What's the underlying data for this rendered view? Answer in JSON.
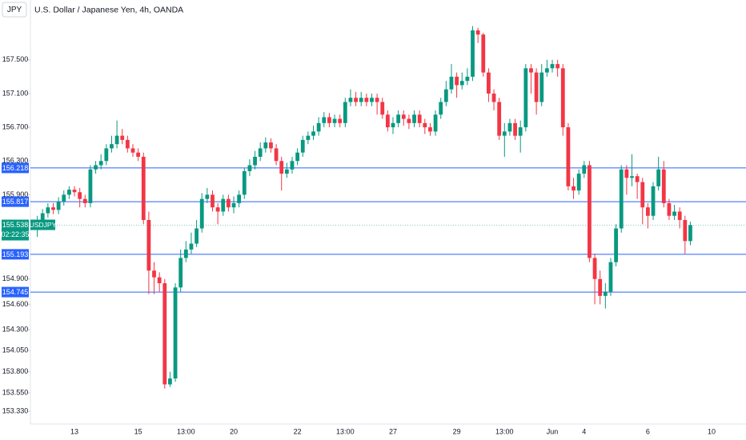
{
  "header": {
    "symbol": "JPY",
    "title": "U.S. Dollar / Japanese Yen, 4h, OANDA"
  },
  "chart_data": {
    "type": "candlestick",
    "categories": [
      null,
      null,
      null,
      null,
      null,
      null,
      null,
      "13",
      null,
      null,
      null,
      null,
      null,
      null,
      null,
      null,
      null,
      null,
      null,
      "15",
      null,
      null,
      null,
      null,
      null,
      null,
      null,
      null,
      "13:00",
      null,
      null,
      null,
      null,
      null,
      null,
      null,
      null,
      "20",
      null,
      null,
      null,
      null,
      null,
      null,
      null,
      null,
      null,
      null,
      null,
      "22",
      null,
      null,
      null,
      null,
      null,
      null,
      null,
      null,
      "13:00",
      null,
      null,
      null,
      null,
      null,
      null,
      null,
      null,
      "27",
      null,
      null,
      null,
      null,
      null,
      null,
      null,
      null,
      null,
      null,
      null,
      "29",
      null,
      null,
      null,
      null,
      null,
      null,
      null,
      null,
      "13:00",
      null,
      null,
      null,
      null,
      null,
      null,
      null,
      null,
      "Jun",
      null,
      null,
      null,
      null,
      null,
      "4",
      null,
      null,
      null,
      null,
      null,
      null,
      null,
      null,
      null,
      null,
      null,
      "6",
      null,
      null,
      null,
      null,
      null,
      null,
      null,
      null,
      null,
      null,
      null,
      "10"
    ],
    "open": [
      155.5,
      155.6,
      155.68,
      155.75,
      155.72,
      155.82,
      155.9,
      155.96,
      155.93,
      155.85,
      155.8,
      156.2,
      156.25,
      156.3,
      156.45,
      156.5,
      156.6,
      156.55,
      156.45,
      156.4,
      156.35,
      155.6,
      155.0,
      154.92,
      154.85,
      153.65,
      153.72,
      154.8,
      155.15,
      155.25,
      155.32,
      155.5,
      155.85,
      155.9,
      155.75,
      155.7,
      155.85,
      155.75,
      155.8,
      155.9,
      156.18,
      156.25,
      156.35,
      156.45,
      156.52,
      156.45,
      156.3,
      156.15,
      156.2,
      156.3,
      156.4,
      156.55,
      156.6,
      156.65,
      156.75,
      156.82,
      156.75,
      156.8,
      156.75,
      157.0,
      157.05,
      157.0,
      157.05,
      157.0,
      157.05,
      157.0,
      156.85,
      156.7,
      156.75,
      156.85,
      156.8,
      156.75,
      156.85,
      156.75,
      156.7,
      156.65,
      156.85,
      157.0,
      157.15,
      157.3,
      157.2,
      157.25,
      157.3,
      157.85,
      157.8,
      157.35,
      157.1,
      157.0,
      156.6,
      156.65,
      156.75,
      156.6,
      156.7,
      157.4,
      157.35,
      157.0,
      157.35,
      157.4,
      157.45,
      157.4,
      156.7,
      156.0,
      155.95,
      156.15,
      156.25,
      155.15,
      154.9,
      154.7,
      154.75,
      155.1,
      155.5,
      156.2,
      156.1,
      156.12,
      156.05,
      155.75,
      155.65,
      156.0,
      156.2,
      155.8,
      155.65,
      155.7,
      155.6,
      155.35,
      null,
      null,
      null,
      null
    ],
    "high": [
      155.65,
      155.73,
      155.8,
      155.8,
      155.87,
      155.95,
      156.0,
      156.0,
      155.98,
      155.9,
      156.25,
      156.3,
      156.38,
      156.5,
      156.6,
      156.78,
      156.68,
      156.6,
      156.5,
      156.45,
      156.4,
      155.7,
      155.1,
      154.98,
      154.9,
      153.8,
      154.85,
      155.25,
      155.35,
      155.45,
      155.6,
      155.92,
      155.98,
      155.95,
      155.8,
      155.9,
      155.9,
      155.88,
      155.95,
      156.22,
      156.32,
      156.42,
      156.52,
      156.58,
      156.57,
      156.5,
      156.35,
      156.28,
      156.35,
      156.45,
      156.6,
      156.65,
      156.72,
      156.82,
      156.88,
      156.87,
      156.85,
      156.85,
      157.05,
      157.15,
      157.12,
      157.12,
      157.1,
      157.1,
      157.1,
      157.05,
      156.9,
      156.82,
      156.9,
      156.9,
      156.85,
      156.9,
      156.9,
      156.8,
      156.75,
      156.9,
      157.05,
      157.25,
      157.45,
      157.35,
      157.35,
      157.4,
      157.9,
      157.88,
      157.82,
      157.4,
      157.15,
      157.05,
      156.75,
      156.8,
      156.8,
      156.78,
      157.45,
      157.45,
      157.4,
      157.45,
      157.5,
      157.5,
      157.5,
      157.45,
      156.75,
      156.1,
      156.2,
      156.3,
      156.3,
      155.2,
      155.0,
      154.85,
      155.15,
      155.55,
      156.25,
      156.25,
      156.38,
      156.15,
      156.1,
      155.8,
      156.05,
      156.35,
      156.3,
      155.85,
      155.78,
      155.75,
      155.65,
      155.58,
      null,
      null,
      null,
      null
    ],
    "low": [
      155.4,
      155.55,
      155.63,
      155.67,
      155.67,
      155.77,
      155.85,
      155.88,
      155.75,
      155.75,
      155.75,
      156.15,
      156.2,
      156.25,
      156.4,
      156.45,
      156.5,
      156.4,
      156.35,
      156.3,
      155.55,
      154.72,
      154.72,
      154.75,
      153.6,
      153.62,
      153.68,
      154.75,
      155.1,
      155.2,
      155.28,
      155.45,
      155.8,
      155.7,
      155.55,
      155.65,
      155.7,
      155.68,
      155.75,
      155.85,
      156.12,
      156.2,
      156.3,
      156.4,
      156.4,
      156.25,
      155.95,
      156.1,
      156.15,
      156.25,
      156.35,
      156.5,
      156.55,
      156.6,
      156.7,
      156.7,
      156.7,
      156.7,
      156.7,
      156.95,
      156.95,
      156.95,
      156.95,
      156.95,
      156.85,
      156.8,
      156.65,
      156.62,
      156.7,
      156.72,
      156.68,
      156.7,
      156.7,
      156.62,
      156.6,
      156.6,
      156.8,
      156.95,
      157.1,
      157.05,
      157.15,
      157.2,
      157.25,
      157.7,
      157.3,
      157.0,
      156.9,
      156.55,
      156.35,
      156.6,
      156.55,
      156.4,
      156.65,
      157.1,
      156.85,
      156.95,
      157.3,
      157.35,
      157.3,
      156.6,
      155.95,
      155.85,
      155.9,
      156.1,
      155.1,
      154.6,
      154.6,
      154.55,
      154.7,
      155.05,
      155.45,
      155.9,
      156.0,
      155.85,
      155.55,
      155.5,
      155.6,
      155.95,
      155.75,
      155.6,
      155.6,
      155.5,
      155.2,
      155.3,
      null,
      null,
      null,
      null
    ],
    "close": [
      155.6,
      155.68,
      155.75,
      155.72,
      155.82,
      155.9,
      155.96,
      155.93,
      155.85,
      155.8,
      156.2,
      156.25,
      156.3,
      156.45,
      156.5,
      156.6,
      156.55,
      156.45,
      156.4,
      156.35,
      155.6,
      155.0,
      154.92,
      154.85,
      153.65,
      153.72,
      154.8,
      155.15,
      155.25,
      155.32,
      155.5,
      155.85,
      155.9,
      155.75,
      155.7,
      155.85,
      155.75,
      155.8,
      155.9,
      156.18,
      156.25,
      156.35,
      156.45,
      156.52,
      156.45,
      156.3,
      156.15,
      156.2,
      156.3,
      156.4,
      156.55,
      156.6,
      156.65,
      156.75,
      156.82,
      156.75,
      156.8,
      156.75,
      157.0,
      157.05,
      157.0,
      157.05,
      157.0,
      157.05,
      157.0,
      156.85,
      156.7,
      156.75,
      156.85,
      156.8,
      156.75,
      156.85,
      156.75,
      156.7,
      156.65,
      156.85,
      157.0,
      157.15,
      157.3,
      157.2,
      157.25,
      157.3,
      157.85,
      157.8,
      157.35,
      157.1,
      157.0,
      156.6,
      156.65,
      156.75,
      156.6,
      156.7,
      157.4,
      157.35,
      157.0,
      157.35,
      157.4,
      157.45,
      157.4,
      156.7,
      156.0,
      155.95,
      156.15,
      156.25,
      155.15,
      154.9,
      154.7,
      154.75,
      155.1,
      155.5,
      156.2,
      156.1,
      156.12,
      156.05,
      155.75,
      155.65,
      156.0,
      156.2,
      155.8,
      155.65,
      155.7,
      155.6,
      155.35,
      155.54,
      null,
      null,
      null,
      null
    ],
    "up_color": "#089981",
    "down_color": "#f23645",
    "ylim": [
      153.18,
      158.21
    ],
    "yticks": [
      {
        "value": 157.5,
        "label": "157.500"
      },
      {
        "value": 157.1,
        "label": "157.100"
      },
      {
        "value": 156.7,
        "label": "156.700"
      },
      {
        "value": 156.3,
        "label": "156.300"
      },
      {
        "value": 155.9,
        "label": "155.900"
      },
      {
        "value": 154.9,
        "label": "154.900"
      },
      {
        "value": 154.6,
        "label": "154.600"
      },
      {
        "value": 154.3,
        "label": "154.300"
      },
      {
        "value": 154.05,
        "label": "154.050"
      },
      {
        "value": 153.8,
        "label": "153.800"
      },
      {
        "value": 153.55,
        "label": "153.550"
      },
      {
        "value": 153.33,
        "label": "153.330"
      }
    ],
    "price_lines": [
      156.218,
      155.817,
      155.193,
      154.745
    ],
    "price_line_color": "#2962ff",
    "last_price": {
      "value": 155.538,
      "symbol": "USDJPY",
      "countdown": "02:22:35"
    }
  }
}
